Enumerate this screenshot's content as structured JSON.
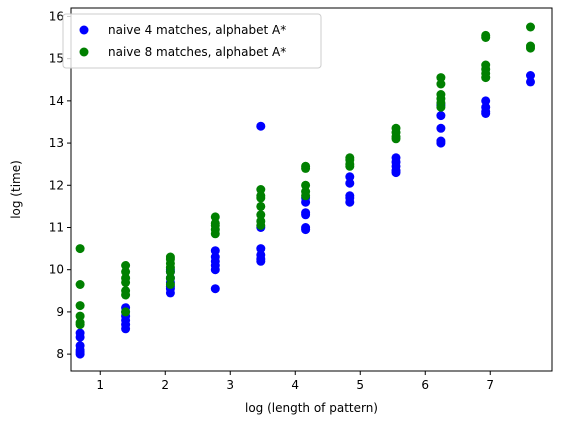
{
  "chart_data": {
    "type": "scatter",
    "title": "",
    "xlabel": "log (length of pattern)",
    "ylabel": "log (time)",
    "xlim": [
      0.55,
      7.95
    ],
    "ylim": [
      7.6,
      16.2
    ],
    "xticks": [
      1,
      2,
      3,
      4,
      5,
      6,
      7
    ],
    "yticks": [
      8,
      9,
      10,
      11,
      12,
      13,
      14,
      15,
      16
    ],
    "grid": false,
    "legend": "top-left",
    "series": [
      {
        "name": "naive 4 matches, alphabet A*",
        "color": "#0000ff",
        "points": [
          [
            0.69,
            8.0
          ],
          [
            0.69,
            8.05
          ],
          [
            0.69,
            8.1
          ],
          [
            0.69,
            8.2
          ],
          [
            0.69,
            8.4
          ],
          [
            0.69,
            8.5
          ],
          [
            1.39,
            8.6
          ],
          [
            1.39,
            8.7
          ],
          [
            1.39,
            8.8
          ],
          [
            1.39,
            8.9
          ],
          [
            1.39,
            9.0
          ],
          [
            1.39,
            9.1
          ],
          [
            2.08,
            9.45
          ],
          [
            2.08,
            9.55
          ],
          [
            2.08,
            9.6
          ],
          [
            2.08,
            9.7
          ],
          [
            2.08,
            9.8
          ],
          [
            2.08,
            9.95
          ],
          [
            2.08,
            10.0
          ],
          [
            2.77,
            9.55
          ],
          [
            2.77,
            10.0
          ],
          [
            2.77,
            10.1
          ],
          [
            2.77,
            10.2
          ],
          [
            2.77,
            10.3
          ],
          [
            2.77,
            10.45
          ],
          [
            3.47,
            10.2
          ],
          [
            3.47,
            10.25
          ],
          [
            3.47,
            10.35
          ],
          [
            3.47,
            10.5
          ],
          [
            3.47,
            11.0
          ],
          [
            3.47,
            13.4
          ],
          [
            4.16,
            10.95
          ],
          [
            4.16,
            11.0
          ],
          [
            4.16,
            11.3
          ],
          [
            4.16,
            11.35
          ],
          [
            4.16,
            11.6
          ],
          [
            4.16,
            11.7
          ],
          [
            4.84,
            11.6
          ],
          [
            4.84,
            11.7
          ],
          [
            4.84,
            11.75
          ],
          [
            4.84,
            12.05
          ],
          [
            4.84,
            12.2
          ],
          [
            5.55,
            12.3
          ],
          [
            5.55,
            12.35
          ],
          [
            5.55,
            12.45
          ],
          [
            5.55,
            12.55
          ],
          [
            5.55,
            12.65
          ],
          [
            6.24,
            13.0
          ],
          [
            6.24,
            13.05
          ],
          [
            6.24,
            13.35
          ],
          [
            6.24,
            13.65
          ],
          [
            6.24,
            13.9
          ],
          [
            6.93,
            13.7
          ],
          [
            6.93,
            13.75
          ],
          [
            6.93,
            13.85
          ],
          [
            6.93,
            14.0
          ],
          [
            7.62,
            14.45
          ],
          [
            7.62,
            14.6
          ]
        ]
      },
      {
        "name": "naive 8 matches, alphabet A*",
        "color": "#008000",
        "points": [
          [
            0.69,
            8.7
          ],
          [
            0.69,
            8.75
          ],
          [
            0.69,
            8.9
          ],
          [
            0.69,
            9.15
          ],
          [
            0.69,
            9.65
          ],
          [
            0.69,
            10.5
          ],
          [
            1.39,
            9.0
          ],
          [
            1.39,
            9.4
          ],
          [
            1.39,
            9.5
          ],
          [
            1.39,
            9.7
          ],
          [
            1.39,
            9.8
          ],
          [
            1.39,
            9.95
          ],
          [
            1.39,
            10.1
          ],
          [
            2.08,
            9.65
          ],
          [
            2.08,
            9.8
          ],
          [
            2.08,
            9.95
          ],
          [
            2.08,
            10.05
          ],
          [
            2.08,
            10.15
          ],
          [
            2.08,
            10.25
          ],
          [
            2.08,
            10.3
          ],
          [
            2.77,
            10.85
          ],
          [
            2.77,
            10.95
          ],
          [
            2.77,
            11.05
          ],
          [
            2.77,
            11.1
          ],
          [
            2.77,
            11.25
          ],
          [
            3.47,
            11.05
          ],
          [
            3.47,
            11.15
          ],
          [
            3.47,
            11.3
          ],
          [
            3.47,
            11.5
          ],
          [
            3.47,
            11.7
          ],
          [
            3.47,
            11.75
          ],
          [
            3.47,
            11.9
          ],
          [
            4.16,
            11.75
          ],
          [
            4.16,
            11.85
          ],
          [
            4.16,
            12.0
          ],
          [
            4.16,
            12.4
          ],
          [
            4.16,
            12.45
          ],
          [
            4.84,
            12.45
          ],
          [
            4.84,
            12.5
          ],
          [
            4.84,
            12.6
          ],
          [
            4.84,
            12.65
          ],
          [
            5.55,
            13.1
          ],
          [
            5.55,
            13.15
          ],
          [
            5.55,
            13.25
          ],
          [
            5.55,
            13.35
          ],
          [
            6.24,
            13.85
          ],
          [
            6.24,
            13.95
          ],
          [
            6.24,
            14.05
          ],
          [
            6.24,
            14.15
          ],
          [
            6.24,
            14.4
          ],
          [
            6.24,
            14.55
          ],
          [
            6.93,
            14.55
          ],
          [
            6.93,
            14.65
          ],
          [
            6.93,
            14.75
          ],
          [
            6.93,
            14.85
          ],
          [
            6.93,
            15.5
          ],
          [
            6.93,
            15.55
          ],
          [
            7.62,
            15.25
          ],
          [
            7.62,
            15.3
          ],
          [
            7.62,
            15.75
          ]
        ]
      }
    ]
  }
}
